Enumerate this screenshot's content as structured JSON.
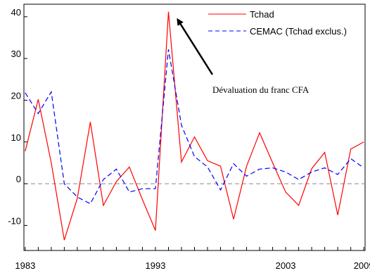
{
  "chart_data": {
    "type": "line",
    "x": [
      1983,
      1984,
      1985,
      1986,
      1987,
      1988,
      1989,
      1990,
      1991,
      1992,
      1993,
      1994,
      1995,
      1996,
      1997,
      1998,
      1999,
      2000,
      2001,
      2002,
      2003,
      2004,
      2005,
      2006,
      2007,
      2008,
      2009
    ],
    "series": [
      {
        "name": "Tchad",
        "color": "#ff0000",
        "style": "solid",
        "values": [
          7.8,
          20.2,
          5.0,
          -13.5,
          -3.5,
          14.8,
          -5.2,
          0.5,
          4.0,
          -3.8,
          -11.2,
          41.2,
          5.2,
          11.2,
          5.5,
          4.2,
          -8.5,
          4.2,
          12.2,
          5.0,
          -2.0,
          -5.2,
          3.6,
          7.5,
          -7.5,
          8.3,
          10.0
        ]
      },
      {
        "name": "CEMAC (Tchad exclus.)",
        "color": "#0000ff",
        "style": "dashed",
        "values": [
          21.8,
          16.8,
          22.0,
          0.0,
          -3.2,
          -4.8,
          1.0,
          3.5,
          -2.0,
          -1.2,
          -1.2,
          32.2,
          14.0,
          6.5,
          4.0,
          -1.5,
          4.8,
          1.8,
          3.5,
          3.8,
          2.8,
          1.0,
          2.8,
          3.8,
          2.2,
          6.0,
          3.8
        ]
      }
    ],
    "zero_line_style": "dashed-gray",
    "ylim": [
      -16,
      43
    ],
    "xlim": [
      1982.9,
      2009.1
    ],
    "yticks": [
      -10,
      0,
      10,
      20,
      30,
      40
    ],
    "ytick_labels": [
      "-10",
      "0",
      "10",
      "20",
      "30",
      "40"
    ],
    "xticks": [
      1983,
      1993,
      2003,
      2009
    ],
    "xtick_labels": [
      "1983",
      "1993",
      "2003",
      "2009"
    ],
    "legend_position": "top-right",
    "annotation": {
      "text": "Dévaluation du franc CFA",
      "arrow_to": [
        1993.8,
        41.2
      ]
    },
    "title": "",
    "xlabel": "",
    "ylabel": ""
  }
}
